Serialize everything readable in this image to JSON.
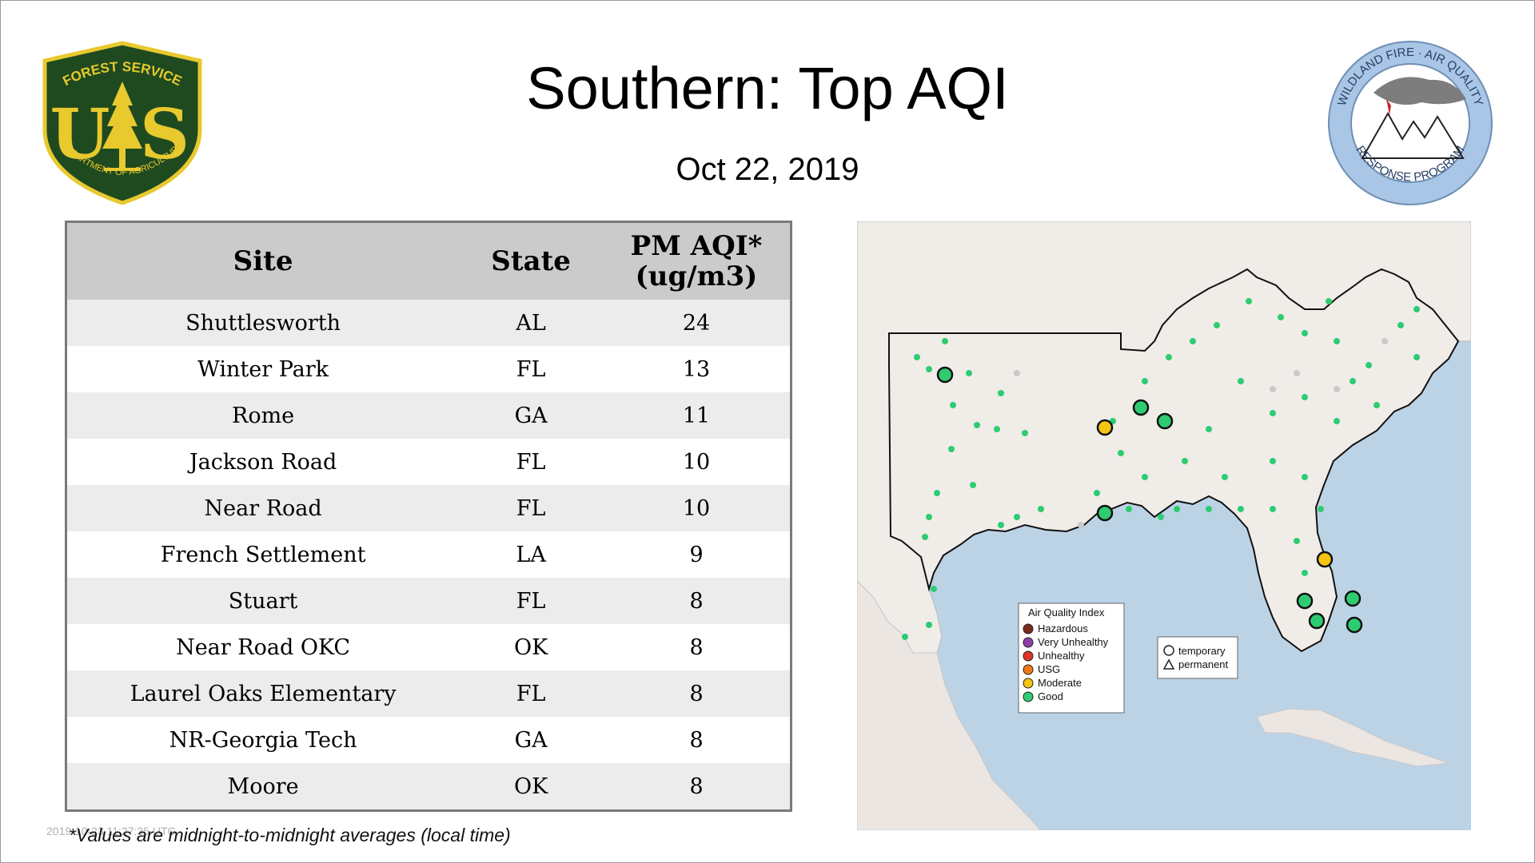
{
  "header": {
    "title": "Southern: Top AQI",
    "date": "Oct 22, 2019"
  },
  "logos": {
    "left": {
      "top_text": "FOREST SERVICE",
      "letters": "US",
      "bottom_text": "DEPARTMENT OF AGRICULTURE"
    },
    "right": {
      "top_text": "WILDLAND FIRE · AIR QUALITY",
      "bottom_text": "RESPONSE PROGRAM"
    }
  },
  "table": {
    "headers": {
      "site": "Site",
      "state": "State",
      "aqi_line1": "PM AQI*",
      "aqi_line2": "(ug/m3)"
    },
    "rows": [
      {
        "site": "Shuttlesworth",
        "state": "AL",
        "aqi": "24"
      },
      {
        "site": "Winter Park",
        "state": "FL",
        "aqi": "13"
      },
      {
        "site": "Rome",
        "state": "GA",
        "aqi": "11"
      },
      {
        "site": "Jackson Road",
        "state": "FL",
        "aqi": "10"
      },
      {
        "site": "Near Road",
        "state": "FL",
        "aqi": "10"
      },
      {
        "site": "French Settlement",
        "state": "LA",
        "aqi": "9"
      },
      {
        "site": "Stuart",
        "state": "FL",
        "aqi": "8"
      },
      {
        "site": "Near Road OKC",
        "state": "OK",
        "aqi": "8"
      },
      {
        "site": "Laurel Oaks Elementary",
        "state": "FL",
        "aqi": "8"
      },
      {
        "site": "NR-Georgia Tech",
        "state": "GA",
        "aqi": "8"
      },
      {
        "site": "Moore",
        "state": "OK",
        "aqi": "8"
      }
    ]
  },
  "map_legend": {
    "title": "Air Quality Index",
    "items": [
      {
        "label": "Hazardous",
        "color": "#7e2a1e"
      },
      {
        "label": "Very Unhealthy",
        "color": "#8f3fa8"
      },
      {
        "label": "Unhealthy",
        "color": "#e0342a"
      },
      {
        "label": "USG",
        "color": "#f07a1a"
      },
      {
        "label": "Moderate",
        "color": "#f5c414"
      },
      {
        "label": "Good",
        "color": "#2ecc71"
      }
    ],
    "marker_types": [
      "temporary",
      "permanent"
    ]
  },
  "footer": {
    "timestamp": "2019-10-23 11:27:35 UTC",
    "footnote": "*Values are midnight-to-midnight averages (local time)"
  }
}
